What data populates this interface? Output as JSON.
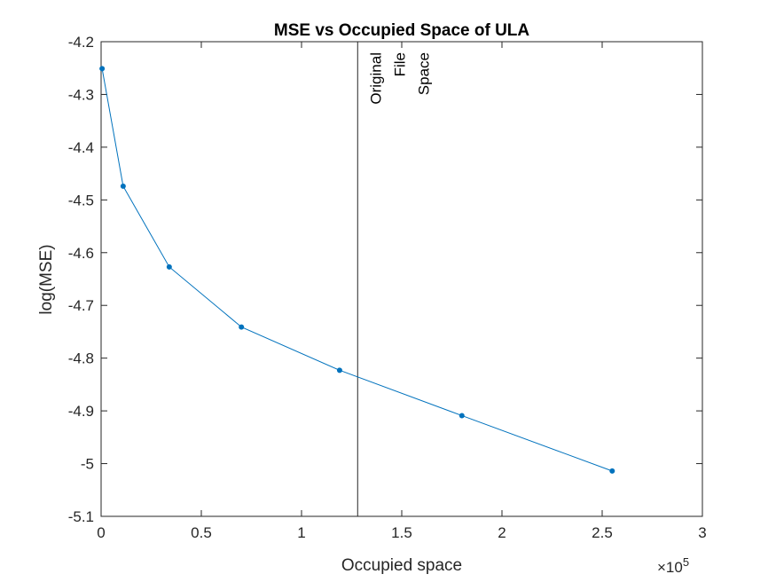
{
  "chart_data": {
    "type": "line",
    "title": "MSE vs Occupied Space of ULA",
    "xlabel": "Occupied space",
    "ylabel": "log(MSE)",
    "x_multiplier_label": {
      "base": "×10",
      "exp": "5"
    },
    "xlim": [
      0,
      300000
    ],
    "ylim": [
      -5.1,
      -4.2
    ],
    "x_ticks": [
      0,
      50000,
      100000,
      150000,
      200000,
      250000,
      300000
    ],
    "x_tick_labels": [
      "0",
      "0.5",
      "1",
      "1.5",
      "2",
      "2.5",
      "3"
    ],
    "y_ticks": [
      -4.2,
      -4.3,
      -4.4,
      -4.5,
      -4.6,
      -4.7,
      -4.8,
      -4.9,
      -5.0,
      -5.1
    ],
    "y_tick_labels": [
      "-4.2",
      "-4.3",
      "-4.4",
      "-4.5",
      "-4.6",
      "-4.7",
      "-4.8",
      "-4.9",
      "-5",
      "-5.1"
    ],
    "grid": false,
    "series": [
      {
        "x": [
          500,
          11000,
          34000,
          70000,
          119000,
          180000,
          255000
        ],
        "y": [
          -4.251,
          -4.474,
          -4.627,
          -4.741,
          -4.823,
          -4.909,
          -5.014
        ],
        "color": "#0072BD"
      }
    ],
    "reference_line": {
      "x": 128000,
      "color": "#262626",
      "label": [
        "Original",
        "File",
        "Space"
      ]
    }
  }
}
